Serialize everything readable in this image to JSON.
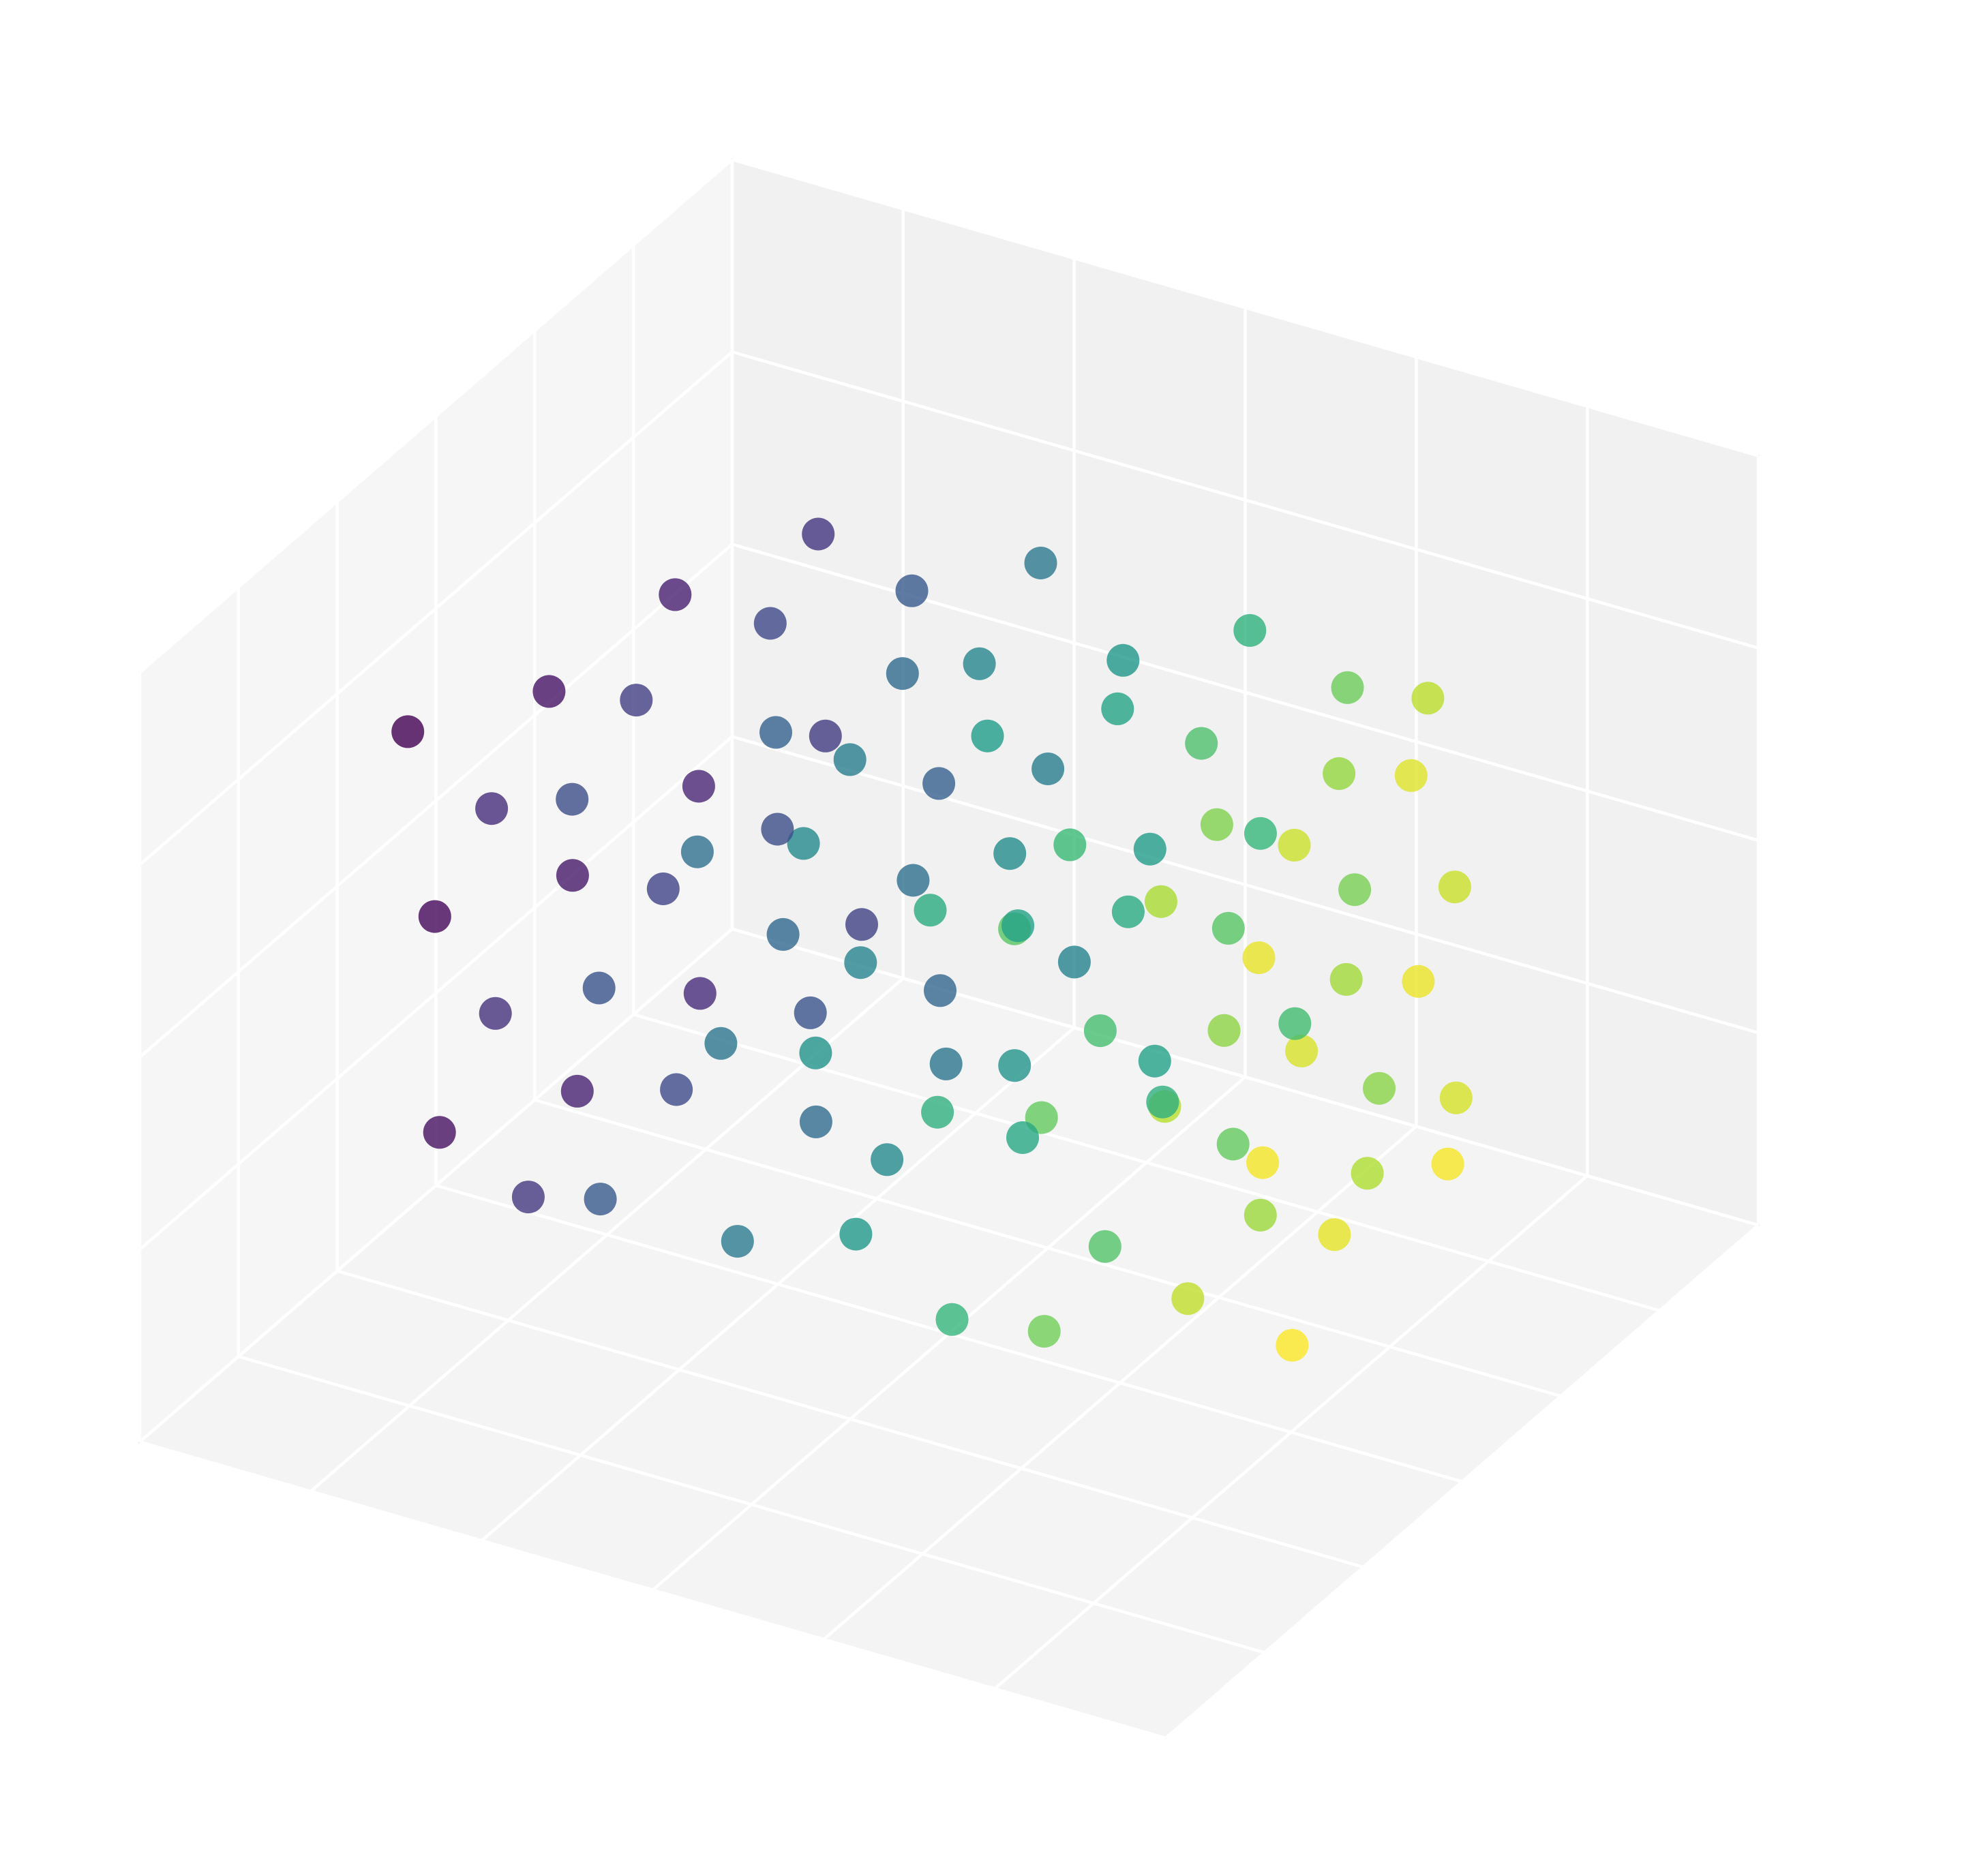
{
  "chart_data": {
    "type": "scatter3d",
    "colormap": "viridis",
    "color_by": "x",
    "alpha": 0.8,
    "grid": true,
    "xlim": [
      -15,
      15
    ],
    "xticks": [
      -15,
      -10,
      -5,
      0,
      5,
      10,
      15
    ],
    "ylim": [
      -15,
      15
    ],
    "yticks": [
      -15,
      -10,
      -5,
      0,
      5,
      10,
      15
    ],
    "zlim": [
      -10,
      10
    ],
    "zticks": [
      -10,
      -5,
      0,
      5,
      10
    ],
    "x": [
      -12.3,
      -9.1,
      -6.4,
      -3.2,
      -0.5,
      2.8,
      5.9,
      9.2,
      11.6,
      -11.0,
      -7.7,
      -4.6,
      -1.8,
      1.3,
      4.4,
      7.6,
      10.5,
      -10.2,
      -6.9,
      -3.9,
      -0.9,
      2.1,
      5.3,
      8.4,
      11.2,
      -8.5,
      -5.3,
      -2.4,
      0.7,
      3.6,
      6.8,
      9.9,
      -11.8,
      -8.7,
      -5.9,
      -2.8,
      0.2,
      3.3,
      6.4,
      9.6,
      12.0,
      -10.6,
      -7.2,
      -4.1,
      -1.2,
      1.9,
      5.0,
      8.1,
      11.0,
      -9.8,
      -6.4,
      -3.3,
      -0.3,
      2.7,
      5.8,
      8.9,
      11.7,
      -8.0,
      -4.8,
      -1.9,
      1.2,
      4.2,
      7.3,
      10.4,
      -11.2,
      -8.2,
      -5.4,
      -2.2,
      0.8,
      3.9,
      7.0,
      10.1,
      12.4,
      -10.0,
      -6.7,
      -3.6,
      -0.6,
      2.5,
      5.6,
      8.7,
      11.5,
      -9.3,
      -5.9,
      -2.8,
      0.3,
      3.3,
      6.4,
      9.4,
      12.1,
      -7.4,
      -4.3,
      -1.3,
      1.8,
      4.8,
      7.9,
      10.9
    ],
    "y": [
      -6.1,
      -7.4,
      -8.0,
      -7.2,
      -6.5,
      -5.8,
      -6.9,
      -5.2,
      -4.4,
      -1.2,
      -2.5,
      -0.8,
      -1.9,
      -0.3,
      -1.5,
      0.4,
      -0.7,
      3.8,
      2.9,
      4.4,
      3.1,
      4.9,
      3.6,
      5.2,
      4.0,
      8.1,
      7.3,
      8.8,
      7.6,
      9.0,
      8.4,
      7.1,
      -5.6,
      -7.9,
      -7.5,
      -6.7,
      -7.1,
      -6.3,
      -6.4,
      -5.7,
      -4.9,
      -0.7,
      -2.0,
      -1.3,
      -2.4,
      0.2,
      -1.0,
      -0.1,
      -1.2,
      4.3,
      2.4,
      3.9,
      3.6,
      4.4,
      4.1,
      4.7,
      3.5,
      7.6,
      7.8,
      8.3,
      8.1,
      8.5,
      7.9,
      7.6,
      -6.4,
      -7.1,
      -8.3,
      -6.9,
      -6.1,
      -6.6,
      -7.3,
      -5.4,
      -4.1,
      -1.5,
      -2.2,
      -0.5,
      -2.1,
      -0.6,
      -1.8,
      0.7,
      -0.4,
      3.5,
      3.2,
      4.7,
      2.8,
      5.1,
      3.3,
      4.9,
      4.3,
      8.4,
      7.0,
      8.6,
      7.3,
      9.2,
      8.1,
      6.8
    ],
    "z": [
      5.2,
      4.6,
      5.8,
      4.9,
      5.5,
      4.3,
      5.1,
      5.9,
      4.7,
      4.4,
      5.6,
      4.8,
      5.3,
      6.0,
      4.5,
      5.0,
      5.7,
      4.9,
      5.4,
      4.2,
      5.8,
      4.6,
      5.1,
      4.4,
      5.6,
      5.0,
      4.7,
      5.5,
      4.3,
      5.2,
      4.8,
      5.9,
      0.3,
      -0.4,
      0.8,
      -0.2,
      0.5,
      -0.6,
      0.1,
      0.9,
      -0.3,
      -0.5,
      0.6,
      -0.1,
      0.4,
      1.0,
      -0.4,
      0.0,
      0.7,
      -0.2,
      0.4,
      -0.8,
      0.8,
      -0.3,
      0.2,
      -0.6,
      0.6,
      0.1,
      -0.4,
      0.5,
      -0.7,
      0.3,
      -0.1,
      0.9,
      -4.8,
      -5.4,
      -4.2,
      -5.1,
      -4.5,
      -5.7,
      -4.9,
      -4.1,
      -5.3,
      -5.6,
      -4.4,
      -5.2,
      -4.7,
      -4.0,
      -5.5,
      -5.0,
      -4.3,
      -5.1,
      -4.6,
      -5.8,
      -4.2,
      -5.4,
      -4.9,
      -5.6,
      -4.4,
      -5.0,
      -5.3,
      -4.5,
      -5.7,
      -4.8,
      -5.2,
      -4.1
    ]
  }
}
